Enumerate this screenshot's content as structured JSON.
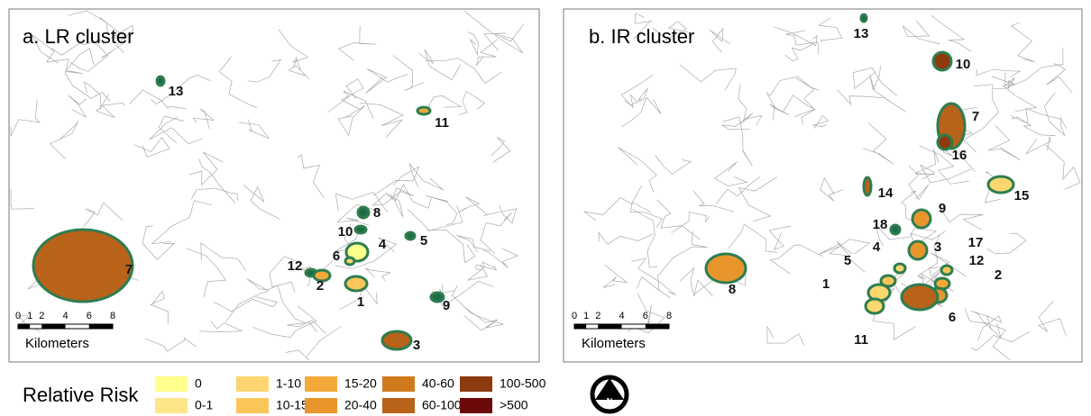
{
  "panels": [
    {
      "title": "a. LR cluster",
      "clusters": [
        {
          "label": "13",
          "color": "#1f6b45"
        },
        {
          "label": "11",
          "color": "#f5a83a"
        },
        {
          "label": "8",
          "color": "#1f6b45"
        },
        {
          "label": "10",
          "color": "#1f6b45"
        },
        {
          "label": "5",
          "color": "#1f6b45"
        },
        {
          "label": "4",
          "color": "#ffff8c"
        },
        {
          "label": "6",
          "color": "#fdd670"
        },
        {
          "label": "12",
          "color": "#1f6b45"
        },
        {
          "label": "2",
          "color": "#f5a83a"
        },
        {
          "label": "1",
          "color": "#fbc55a"
        },
        {
          "label": "9",
          "color": "#1f6b45"
        },
        {
          "label": "7",
          "color": "#b8621a"
        },
        {
          "label": "3",
          "color": "#b8621a"
        }
      ],
      "scale": {
        "ticks": [
          "0",
          "1",
          "2",
          "4",
          "6",
          "8"
        ],
        "unit": "Kilometers"
      }
    },
    {
      "title": "b. IR cluster",
      "clusters": [
        {
          "label": "13",
          "color": "#1f6b45"
        },
        {
          "label": "10",
          "color": "#8c3a0e"
        },
        {
          "label": "7",
          "color": "#b8621a"
        },
        {
          "label": "16",
          "color": "#8c3a0e"
        },
        {
          "label": "15",
          "color": "#fdd670"
        },
        {
          "label": "14",
          "color": "#b8621a"
        },
        {
          "label": "9",
          "color": "#e8962c"
        },
        {
          "label": "18",
          "color": "#1f6b45"
        },
        {
          "label": "3",
          "color": "#e8962c"
        },
        {
          "label": "17",
          "color": "#fbc55a"
        },
        {
          "label": "4",
          "color": "#fdd670"
        },
        {
          "label": "5",
          "color": "#fbc55a"
        },
        {
          "label": "12",
          "color": "#f5a83a"
        },
        {
          "label": "2",
          "color": "#e8962c"
        },
        {
          "label": "1",
          "color": "#fdd670"
        },
        {
          "label": "8",
          "color": "#e8962c"
        },
        {
          "label": "11",
          "color": "#fdd670"
        },
        {
          "label": "6",
          "color": "#b8621a"
        }
      ],
      "scale": {
        "ticks": [
          "0",
          "1",
          "2",
          "4",
          "6",
          "8"
        ],
        "unit": "Kilometers"
      }
    }
  ],
  "legend": {
    "title": "Relative Risk",
    "items": [
      {
        "label": "0",
        "color": "#ffff8c"
      },
      {
        "label": "0-1",
        "color": "#fde68a"
      },
      {
        "label": "1-10",
        "color": "#fdd670"
      },
      {
        "label": "10-15",
        "color": "#fbc55a"
      },
      {
        "label": "15-20",
        "color": "#f5a83a"
      },
      {
        "label": "20-40",
        "color": "#e8962c"
      },
      {
        "label": "40-60",
        "color": "#d07a1e"
      },
      {
        "label": "60-100",
        "color": "#b8621a"
      },
      {
        "label": "100-500",
        "color": "#8c3a0e"
      },
      {
        "label": ">500",
        "color": "#6b0a0a"
      }
    ]
  },
  "north": "N"
}
